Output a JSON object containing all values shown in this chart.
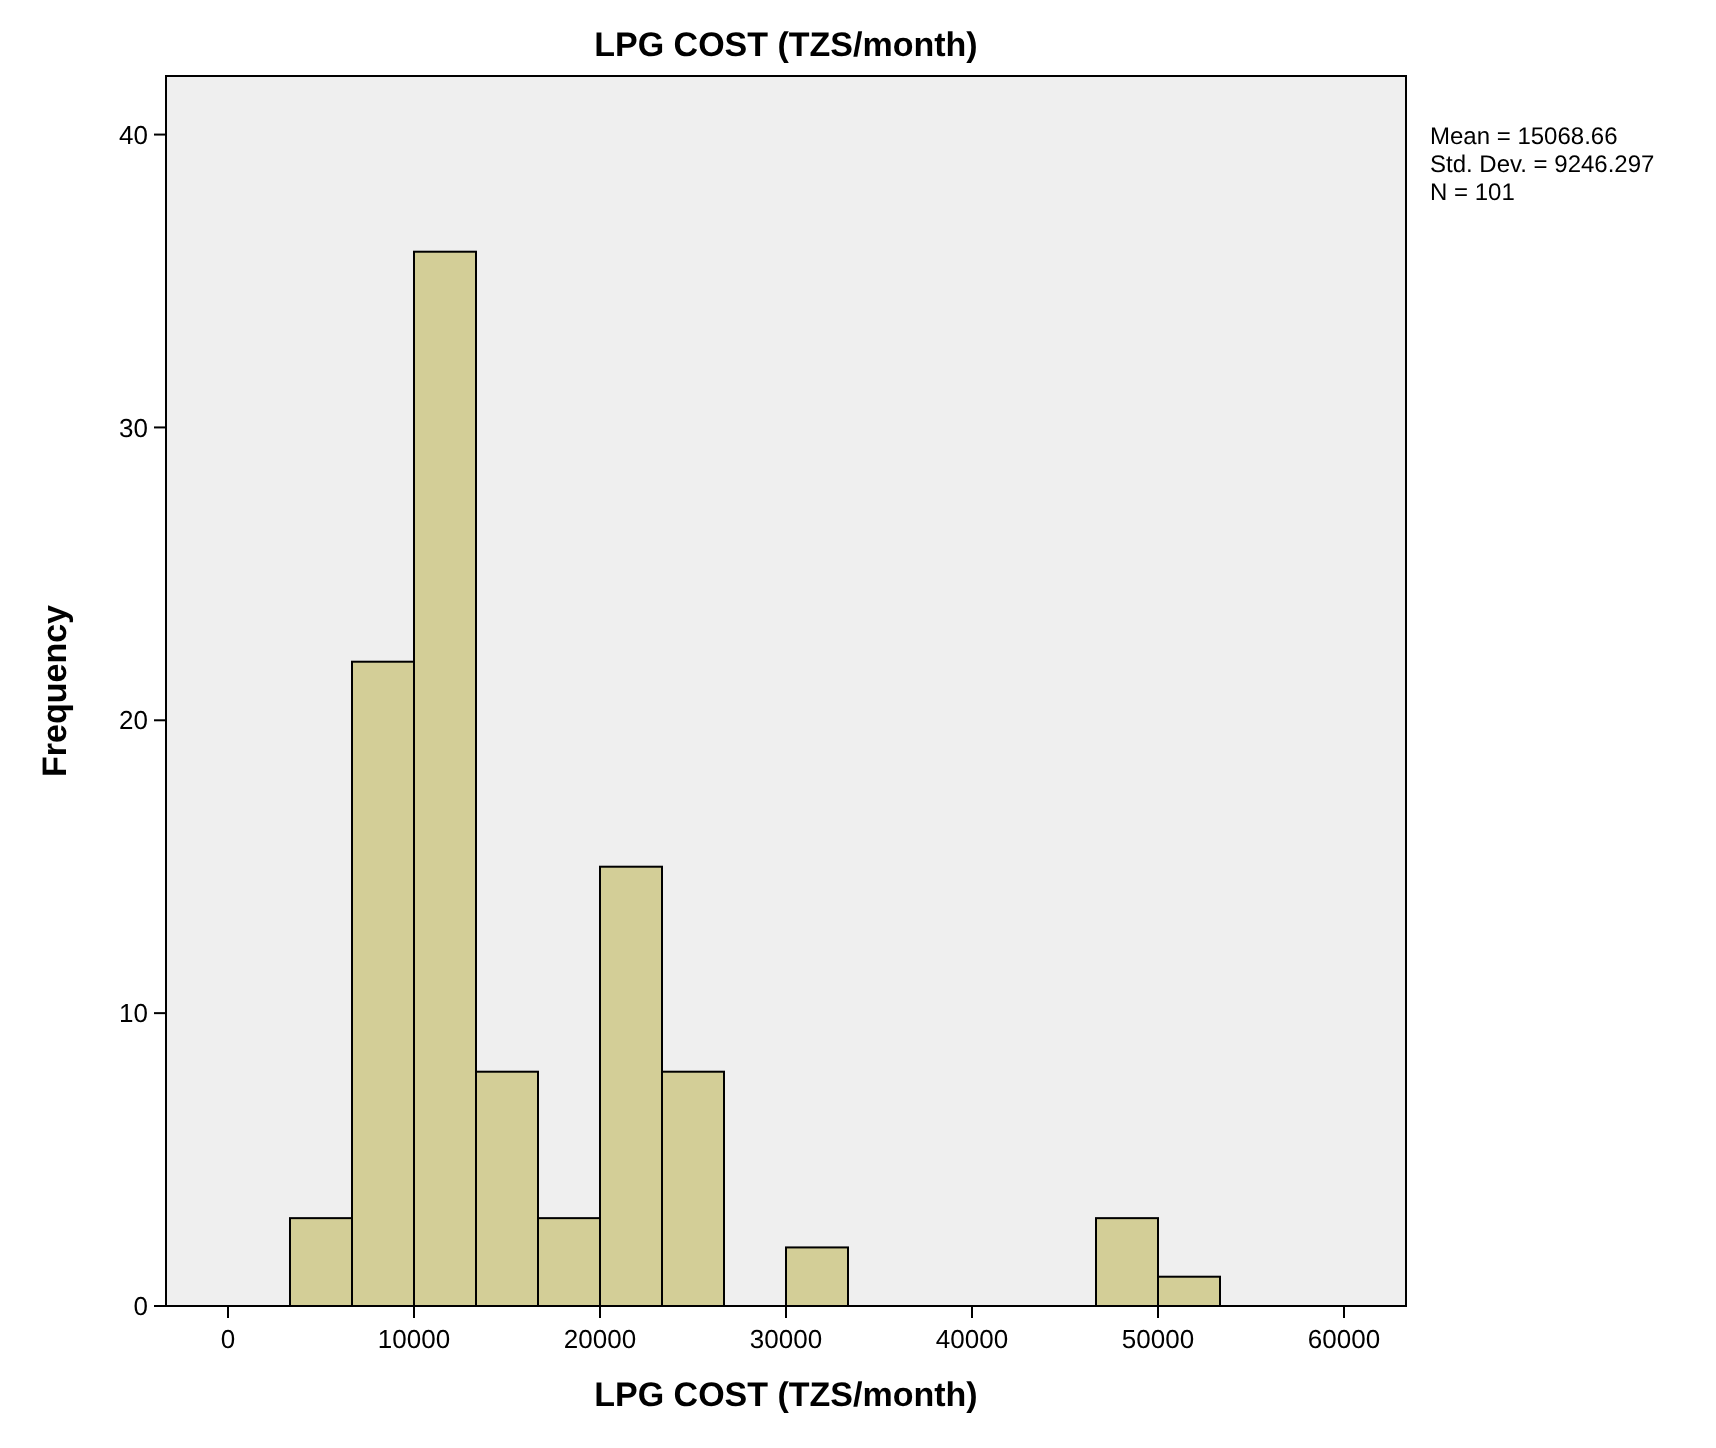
{
  "chart_data": {
    "type": "histogram",
    "title": "LPG COST (TZS/month)",
    "xlabel": "LPG COST (TZS/month)",
    "ylabel": "Frequency",
    "bins": [
      3333.33,
      6666.67,
      10000,
      13333.33,
      16666.67,
      20000,
      23333.33,
      26666.67,
      30000,
      33333.33,
      36666.67,
      40000,
      43333.33,
      46666.67,
      50000,
      53333.33
    ],
    "values": [
      3,
      22,
      36,
      8,
      3,
      15,
      8,
      0,
      2,
      0,
      0,
      0,
      0,
      3,
      1
    ],
    "color": "#d3ce97",
    "xlim": [
      -3333.33,
      63333.33
    ],
    "xticks": [
      0,
      10000,
      20000,
      30000,
      40000,
      50000,
      60000
    ],
    "ylim": [
      0,
      42
    ],
    "yticks": [
      0,
      10,
      20,
      30,
      40
    ],
    "grid": false,
    "annotations": [
      "Mean = 15068.66",
      "Std. Dev. = 9246.297",
      "N = 101"
    ]
  }
}
